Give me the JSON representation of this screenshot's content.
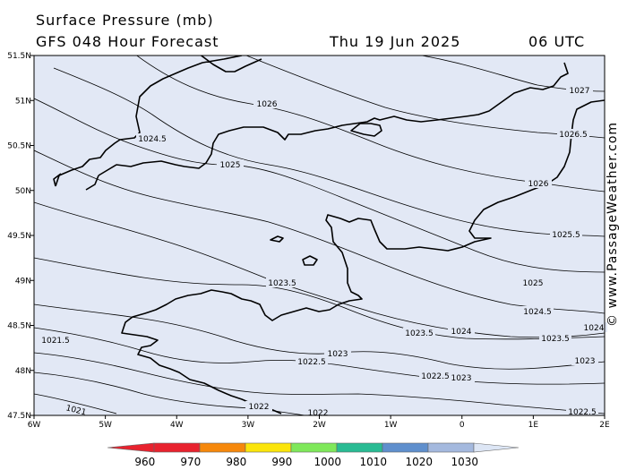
{
  "header": {
    "title": "Surface Pressure (mb)",
    "subtitle": "GFS 048 Hour Forecast",
    "date": "Thu 19 Jun 2025",
    "time": "06 UTC"
  },
  "credit": "© www.PassageWeather.com",
  "axes": {
    "lat_labels": [
      "51.5N",
      "51N",
      "50.5N",
      "50N",
      "49.5N",
      "49N",
      "48.5N",
      "48N",
      "47.5N"
    ],
    "lon_labels": [
      "6W",
      "5W",
      "4W",
      "3W",
      "2W",
      "1W",
      "0",
      "1E",
      "2E"
    ]
  },
  "isobars": [
    {
      "label": "1027"
    },
    {
      "label": "1026.5"
    },
    {
      "label": "1026"
    },
    {
      "label": "1025.5"
    },
    {
      "label": "1025"
    },
    {
      "label": "1024.5"
    },
    {
      "label": "1024"
    },
    {
      "label": "1023.5"
    },
    {
      "label": "1023"
    },
    {
      "label": "1022.5"
    },
    {
      "label": "1022"
    },
    {
      "label": "1021.5"
    },
    {
      "label": "1021"
    }
  ],
  "colorbar": {
    "ticks": [
      "960",
      "970",
      "980",
      "990",
      "1000",
      "1010",
      "1020",
      "1030"
    ],
    "colors": [
      "#e8222e",
      "#f6880b",
      "#fbe50b",
      "#7fe85a",
      "#29bb93",
      "#5f8fcd",
      "#a4b9de",
      "#dde6f5"
    ]
  },
  "colors": {
    "map_background": "#e2e8f5",
    "coastline": "#000000",
    "isobar": "#000000"
  }
}
